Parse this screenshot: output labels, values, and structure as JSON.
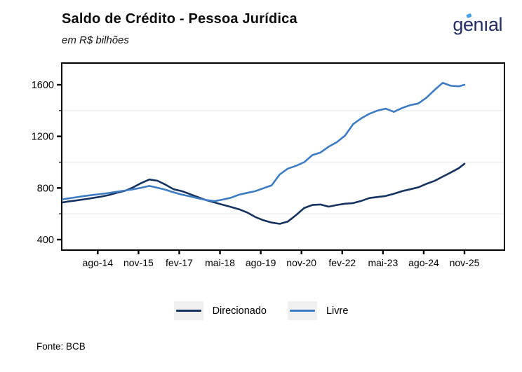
{
  "header": {
    "title": "Saldo de Crédito - Pessoa Jurídica",
    "subtitle": "em R$ bilhões"
  },
  "logo": {
    "text": "genıal",
    "color": "#252e63",
    "accent_color": "#45a0e6"
  },
  "legend": [
    {
      "label": "Direcionado",
      "color": "#16325f"
    },
    {
      "label": "Livre",
      "color": "#3d7cc2"
    }
  ],
  "footer": {
    "source": "Fonte: BCB"
  },
  "chart_data": {
    "type": "line",
    "title": "Saldo de Crédito - Pessoa Jurídica",
    "subtitle": "em R$ bilhões",
    "unit": "R$ bilhões",
    "grid": "horizontal-minor-only",
    "legend_position": "bottom-center",
    "ylim": [
      320,
      1770
    ],
    "y_ticks": [
      400,
      800,
      1200,
      1600
    ],
    "y_minor_ticks": [
      600,
      1000,
      1400
    ],
    "x_tick_labels": [
      "ago-14",
      "nov-15",
      "fev-17",
      "mai-18",
      "ago-19",
      "nov-20",
      "fev-22",
      "mai-23",
      "ago-24",
      "nov-25"
    ],
    "x_dates": [
      "jul-13",
      "set-13",
      "dez-13",
      "mar-14",
      "jun-14",
      "set-14",
      "dez-14",
      "mar-15",
      "jun-15",
      "set-15",
      "dez-15",
      "mar-16",
      "jun-16",
      "set-16",
      "dez-16",
      "mar-17",
      "jun-17",
      "set-17",
      "dez-17",
      "mar-18",
      "jun-18",
      "set-18",
      "dez-18",
      "mar-19",
      "jun-19",
      "set-19",
      "dez-19",
      "mar-20",
      "jun-20",
      "set-20",
      "dez-20",
      "mar-21",
      "jun-21",
      "set-21",
      "dez-21",
      "mar-22",
      "jun-22",
      "set-22",
      "dez-22",
      "mar-23",
      "jun-23",
      "set-23",
      "dez-23",
      "mar-24",
      "jun-24",
      "set-24",
      "dez-24",
      "mar-25",
      "jun-25",
      "set-25",
      "nov-25"
    ],
    "series": [
      {
        "name": "Direcionado",
        "color": "#16325f",
        "values": [
          688,
          695,
          703,
          712,
          722,
          732,
          745,
          762,
          778,
          805,
          838,
          866,
          856,
          825,
          790,
          775,
          752,
          728,
          705,
          688,
          670,
          653,
          635,
          610,
          575,
          550,
          532,
          522,
          540,
          590,
          645,
          668,
          672,
          655,
          668,
          678,
          683,
          700,
          722,
          730,
          738,
          755,
          775,
          790,
          805,
          832,
          855,
          888,
          920,
          955,
          988
        ]
      },
      {
        "name": "Livre",
        "color": "#3d7cc2",
        "values": [
          712,
          719,
          728,
          738,
          746,
          753,
          761,
          771,
          780,
          790,
          802,
          816,
          802,
          786,
          766,
          748,
          735,
          720,
          706,
          698,
          710,
          724,
          748,
          762,
          775,
          798,
          820,
          905,
          950,
          972,
          1000,
          1055,
          1075,
          1120,
          1155,
          1205,
          1295,
          1340,
          1375,
          1400,
          1415,
          1390,
          1420,
          1442,
          1455,
          1500,
          1560,
          1615,
          1592,
          1588,
          1600
        ]
      }
    ]
  }
}
